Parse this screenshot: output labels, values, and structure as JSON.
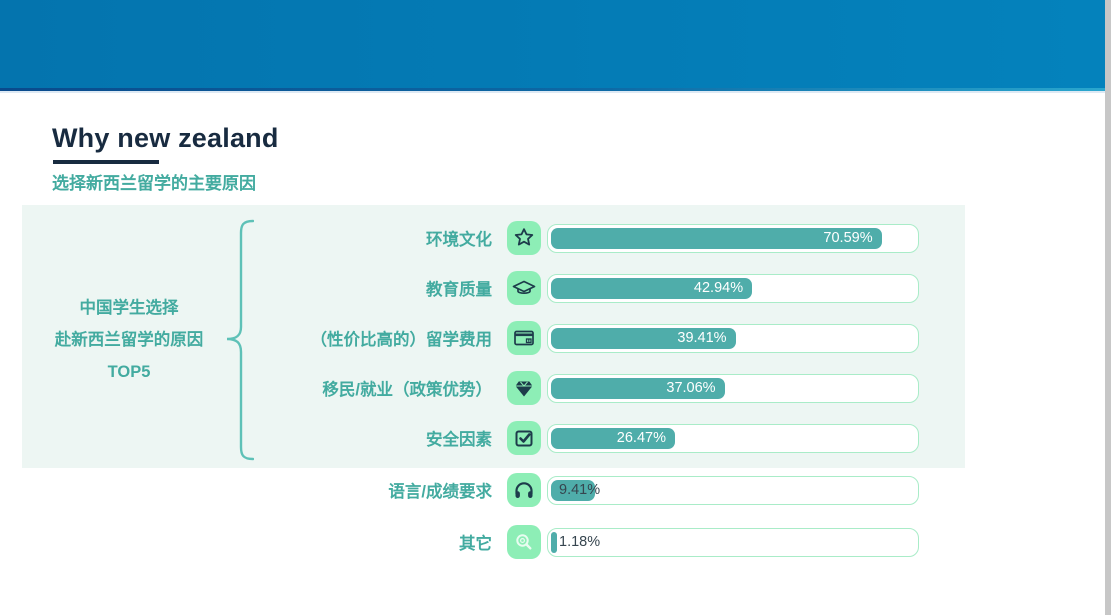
{
  "page": {
    "title": "Why new zealand",
    "subtitle": "选择新西兰留学的主要原因"
  },
  "chart_data": {
    "type": "bar",
    "orientation": "horizontal",
    "title": "Why new zealand",
    "subtitle": "选择新西兰留学的主要原因",
    "group_label_lines": [
      "中国学生选择",
      "赴新西兰留学的原因",
      "TOP5"
    ],
    "categories": [
      "环境文化",
      "教育质量",
      "（性价比高的）留学费用",
      "移民/就业（政策优势）",
      "安全因素",
      "语言/成绩要求",
      "其它"
    ],
    "values": [
      70.59,
      42.94,
      39.41,
      37.06,
      26.47,
      9.41,
      1.18
    ],
    "value_labels": [
      "70.59%",
      "42.94%",
      "39.41%",
      "37.06%",
      "26.47%",
      "9.41%",
      "1.18%"
    ],
    "icons": [
      "star-icon",
      "graduation-cap-icon",
      "wallet-icon",
      "gem-icon",
      "checkbox-checked-icon",
      "headphones-icon",
      "magnifier-icon"
    ],
    "highlighted_top5_rows": 5,
    "xlim": [
      0,
      79
    ],
    "grid": false,
    "legend": false
  },
  "theme": {
    "colors": {
      "header_left": "#0474ae",
      "header_right": "#0482bc",
      "rule_left": "#0a4a8c",
      "rule_mid": "#0d6aa6",
      "rule_right": "#2aa7ce",
      "rule_light": "#dde9f4",
      "edge": "#c7c7c7",
      "navy": "#182b40",
      "teal_text": "#43aba0",
      "panel": "#edf6f3",
      "bar_fill": "#4fadaa",
      "track_border": "#a9ecc8",
      "icon_bg": "#8deeb6",
      "glyph": "#1d3c4b",
      "glyph_light": "#e9fcf1",
      "value_dark": "#36454f",
      "bracket": "#5ec1b7"
    }
  }
}
